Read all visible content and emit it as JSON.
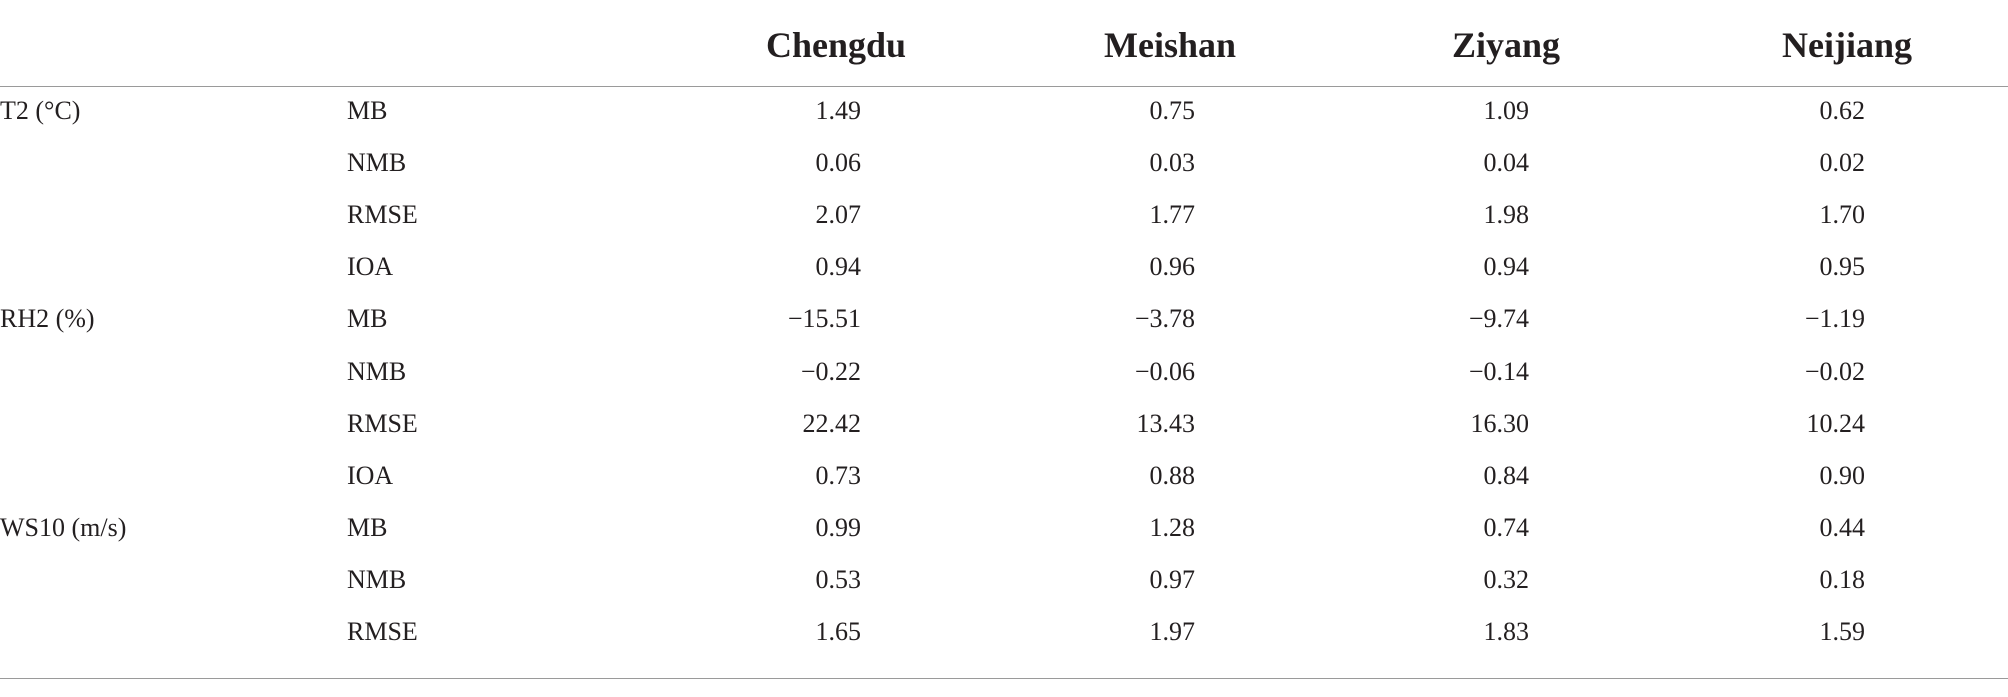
{
  "table": {
    "columns": [
      "Chengdu",
      "Meishan",
      "Ziyang",
      "Neijiang"
    ],
    "groups": [
      {
        "label": "T2 (°C)",
        "rows": [
          {
            "metric": "MB",
            "values": [
              "1.49",
              "0.75",
              "1.09",
              "0.62"
            ]
          },
          {
            "metric": "NMB",
            "values": [
              "0.06",
              "0.03",
              "0.04",
              "0.02"
            ]
          },
          {
            "metric": "RMSE",
            "values": [
              "2.07",
              "1.77",
              "1.98",
              "1.70"
            ]
          },
          {
            "metric": "IOA",
            "values": [
              "0.94",
              "0.96",
              "0.94",
              "0.95"
            ]
          }
        ]
      },
      {
        "label": "RH2 (%)",
        "rows": [
          {
            "metric": "MB",
            "values": [
              "−15.51",
              "−3.78",
              "−9.74",
              "−1.19"
            ]
          },
          {
            "metric": "NMB",
            "values": [
              "−0.22",
              "−0.06",
              "−0.14",
              "−0.02"
            ]
          },
          {
            "metric": "RMSE",
            "values": [
              "22.42",
              "13.43",
              "16.30",
              "10.24"
            ]
          },
          {
            "metric": "IOA",
            "values": [
              "0.73",
              "0.88",
              "0.84",
              "0.90"
            ]
          }
        ]
      },
      {
        "label": "WS10 (m/s)",
        "rows": [
          {
            "metric": "MB",
            "values": [
              "0.99",
              "1.28",
              "0.74",
              "0.44"
            ]
          },
          {
            "metric": "NMB",
            "values": [
              "0.53",
              "0.97",
              "0.32",
              "0.18"
            ]
          },
          {
            "metric": "RMSE",
            "values": [
              "1.65",
              "1.97",
              "1.83",
              "1.59"
            ]
          }
        ]
      }
    ]
  }
}
